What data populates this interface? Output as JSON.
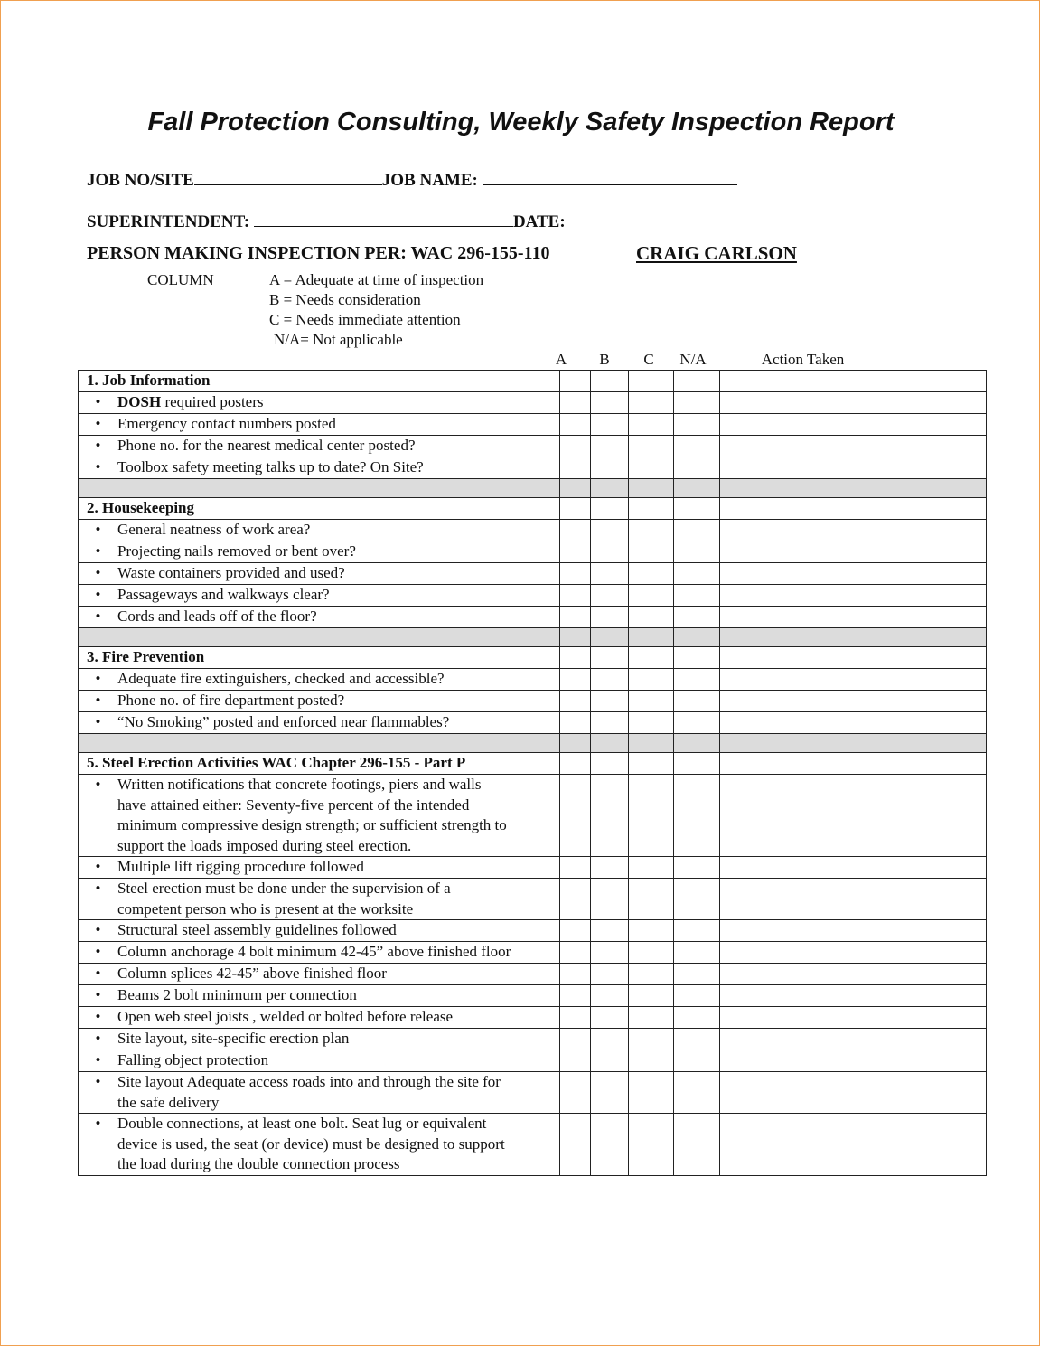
{
  "title": "Fall Protection Consulting, Weekly Safety Inspection Report",
  "fields": {
    "job_no_label": "JOB NO/SITE",
    "job_name_label": "JOB NAME:",
    "superintendent_label": "SUPERINTENDENT:",
    "date_label": "DATE:",
    "person_label": "PERSON MAKING INSPECTION PER: WAC 296-155-110",
    "inspector": "CRAIG CARLSON"
  },
  "legend": {
    "label": "COLUMN",
    "items": [
      "A = Adequate at time of inspection",
      "B = Needs consideration",
      "C = Needs immediate attention",
      "N/A= Not applicable"
    ]
  },
  "columns": [
    "A",
    "B",
    "C",
    "N/A",
    "Action Taken"
  ],
  "rows": [
    {
      "type": "sec",
      "text": "1. Job Information"
    },
    {
      "type": "item",
      "text": "DOSH required posters",
      "bold_prefix": "DOSH"
    },
    {
      "type": "item",
      "text": "Emergency contact numbers posted"
    },
    {
      "type": "item",
      "text": "Phone no. for the nearest medical center posted?"
    },
    {
      "type": "item",
      "text": "Toolbox safety meeting talks up to date? On Site?"
    },
    {
      "type": "gray"
    },
    {
      "type": "sec",
      "text": "2. Housekeeping"
    },
    {
      "type": "item",
      "text": "General neatness of work area?"
    },
    {
      "type": "item",
      "text": "Projecting nails removed or bent over?"
    },
    {
      "type": "item",
      "text": "Waste containers provided and used?"
    },
    {
      "type": "item",
      "text": "Passageways and walkways clear?"
    },
    {
      "type": "item",
      "text": "Cords and leads off of the floor?"
    },
    {
      "type": "gray"
    },
    {
      "type": "sec",
      "text": "3. Fire Prevention"
    },
    {
      "type": "item",
      "text": "Adequate fire extinguishers, checked and accessible?"
    },
    {
      "type": "item",
      "text": "Phone no. of fire department posted?"
    },
    {
      "type": "item",
      "text": "“No Smoking” posted and enforced near flammables?"
    },
    {
      "type": "gray"
    },
    {
      "type": "sec",
      "text": "5. Steel Erection Activities WAC Chapter 296-155 - Part P"
    },
    {
      "type": "item",
      "text": "Written notifications that concrete footings, piers and walls\nhave attained either: Seventy-five percent of the intended\nminimum compressive design strength; or sufficient strength to\nsupport the loads imposed during steel erection."
    },
    {
      "type": "item",
      "text": "Multiple lift rigging procedure followed"
    },
    {
      "type": "item",
      "text": "Steel erection must be done under the supervision of a\ncompetent person who is present at the worksite"
    },
    {
      "type": "item",
      "text": "Structural steel assembly guidelines followed"
    },
    {
      "type": "item",
      "text": "Column anchorage 4 bolt minimum 42-45” above finished floor"
    },
    {
      "type": "item",
      "text": "Column splices 42-45” above finished floor"
    },
    {
      "type": "item",
      "text": "Beams 2 bolt minimum per connection"
    },
    {
      "type": "item",
      "text": "Open web steel joists , welded or bolted before release"
    },
    {
      "type": "item",
      "text": "Site layout, site-specific erection plan"
    },
    {
      "type": "item",
      "text": "Falling object protection"
    },
    {
      "type": "item",
      "text": "Site layout Adequate access roads into and through the site for\nthe safe delivery"
    },
    {
      "type": "item",
      "text": "Double connections, at least one bolt. Seat lug or equivalent\ndevice is used, the seat (or device) must be designed to support\nthe load during the double connection process"
    }
  ]
}
